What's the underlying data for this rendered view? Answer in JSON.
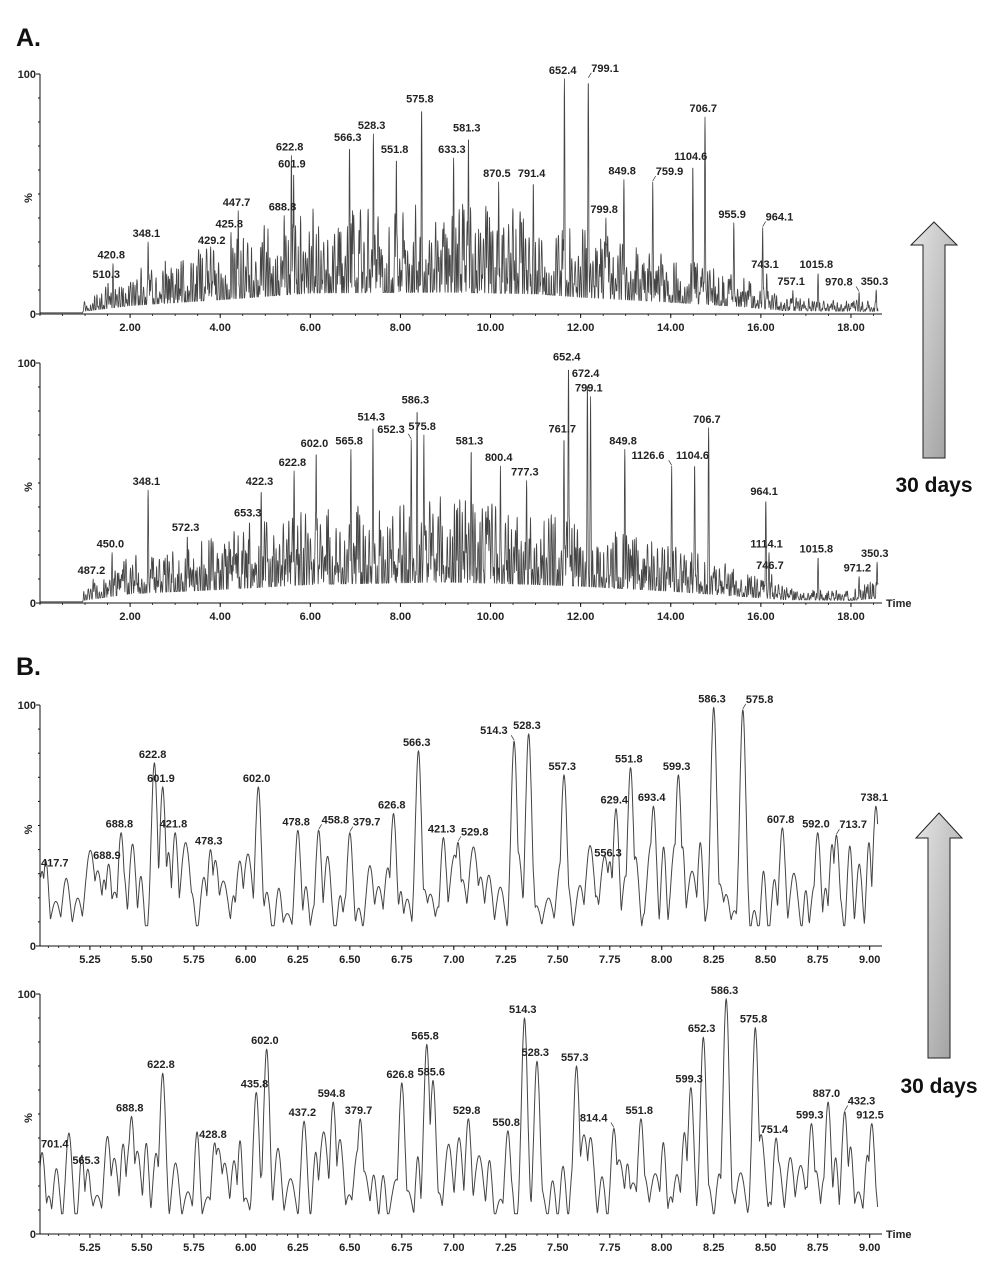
{
  "figure": {
    "section_labels": {
      "a": "A.",
      "b": "B."
    },
    "arrow_labels": {
      "a": "30 days",
      "b": "30 days"
    },
    "arrow_direction": "up",
    "arrow_fill": "#c8c8c8",
    "trace_color": "#444444"
  },
  "chart_data": [
    {
      "type": "line",
      "section": "A.",
      "ylabel": "%",
      "xlabel": "",
      "xlim": [
        0,
        18.6
      ],
      "ylim": [
        0,
        100
      ],
      "grid": false,
      "yticks": [
        "0",
        "100"
      ],
      "xticks": [
        "2.00",
        "4.00",
        "6.00",
        "8.00",
        "10.00",
        "12.00",
        "14.00",
        "16.00",
        "18.00"
      ],
      "peaks": [
        {
          "mz": "510.3",
          "t": 1.51,
          "pct": 13
        },
        {
          "mz": "420.8",
          "t": 1.62,
          "pct": 21
        },
        {
          "mz": "348.1",
          "t": 2.4,
          "pct": 30
        },
        {
          "mz": "429.2",
          "t": 3.85,
          "pct": 27
        },
        {
          "mz": "425.8",
          "t": 4.24,
          "pct": 34
        },
        {
          "mz": "447.7",
          "t": 4.4,
          "pct": 43
        },
        {
          "mz": "688.8",
          "t": 5.42,
          "pct": 41
        },
        {
          "mz": "622.8",
          "t": 5.58,
          "pct": 66
        },
        {
          "mz": "601.9",
          "t": 5.63,
          "pct": 59
        },
        {
          "mz": "566.3",
          "t": 6.87,
          "pct": 70
        },
        {
          "mz": "528.3",
          "t": 7.4,
          "pct": 75
        },
        {
          "mz": "551.8",
          "t": 7.91,
          "pct": 65
        },
        {
          "mz": "575.8",
          "t": 8.47,
          "pct": 86
        },
        {
          "mz": "633.3",
          "t": 9.18,
          "pct": 65
        },
        {
          "mz": "581.3",
          "t": 9.51,
          "pct": 74
        },
        {
          "mz": "870.5",
          "t": 10.18,
          "pct": 55
        },
        {
          "mz": "791.4",
          "t": 10.95,
          "pct": 55
        },
        {
          "mz": "652.4",
          "t": 11.64,
          "pct": 98
        },
        {
          "mz": "799.1",
          "t": 12.17,
          "pct": 98
        },
        {
          "mz": "799.8",
          "t": 12.56,
          "pct": 40
        },
        {
          "mz": "849.8",
          "t": 12.96,
          "pct": 56
        },
        {
          "mz": "759.9",
          "t": 13.6,
          "pct": 55
        },
        {
          "mz": "1104.6",
          "t": 14.49,
          "pct": 62
        },
        {
          "mz": "706.7",
          "t": 14.76,
          "pct": 82
        },
        {
          "mz": "955.9",
          "t": 15.4,
          "pct": 38
        },
        {
          "mz": "964.1",
          "t": 16.04,
          "pct": 36
        },
        {
          "mz": "743.1",
          "t": 16.13,
          "pct": 17
        },
        {
          "mz": "757.1",
          "t": 16.71,
          "pct": 10
        },
        {
          "mz": "1015.8",
          "t": 17.27,
          "pct": 17
        },
        {
          "mz": "970.8",
          "t": 18.18,
          "pct": 9
        },
        {
          "mz": "350.3",
          "t": 18.56,
          "pct": 10
        }
      ]
    },
    {
      "type": "line",
      "section": "A.",
      "ylabel": "%",
      "xlabel": "Time",
      "xlim": [
        0,
        18.6
      ],
      "ylim": [
        0,
        100
      ],
      "grid": false,
      "yticks": [
        "0",
        "100"
      ],
      "xticks": [
        "2.00",
        "4.00",
        "6.00",
        "8.00",
        "10.00",
        "12.00",
        "14.00",
        "16.00",
        "18.00"
      ],
      "peaks": [
        {
          "mz": "487.2",
          "t": 1.18,
          "pct": 10
        },
        {
          "mz": "450.0",
          "t": 1.6,
          "pct": 21
        },
        {
          "mz": "348.1",
          "t": 2.4,
          "pct": 47
        },
        {
          "mz": "572.3",
          "t": 3.27,
          "pct": 28
        },
        {
          "mz": "653.3",
          "t": 4.65,
          "pct": 34
        },
        {
          "mz": "422.3",
          "t": 4.91,
          "pct": 47
        },
        {
          "mz": "622.8",
          "t": 5.64,
          "pct": 55
        },
        {
          "mz": "602.0",
          "t": 6.13,
          "pct": 63
        },
        {
          "mz": "565.8",
          "t": 6.9,
          "pct": 64
        },
        {
          "mz": "514.3",
          "t": 7.39,
          "pct": 74
        },
        {
          "mz": "652.3",
          "t": 8.24,
          "pct": 68
        },
        {
          "mz": "586.3",
          "t": 8.37,
          "pct": 81
        },
        {
          "mz": "575.8",
          "t": 8.52,
          "pct": 70
        },
        {
          "mz": "581.3",
          "t": 9.57,
          "pct": 64
        },
        {
          "mz": "800.4",
          "t": 10.22,
          "pct": 57
        },
        {
          "mz": "777.3",
          "t": 10.8,
          "pct": 51
        },
        {
          "mz": "761.7",
          "t": 11.63,
          "pct": 69
        },
        {
          "mz": "652.4",
          "t": 11.73,
          "pct": 99
        },
        {
          "mz": "672.4",
          "t": 12.15,
          "pct": 92
        },
        {
          "mz": "799.1",
          "t": 12.22,
          "pct": 86
        },
        {
          "mz": "849.8",
          "t": 12.98,
          "pct": 64
        },
        {
          "mz": "1126.6",
          "t": 14.02,
          "pct": 57
        },
        {
          "mz": "1104.6",
          "t": 14.53,
          "pct": 58
        },
        {
          "mz": "706.7",
          "t": 14.84,
          "pct": 73
        },
        {
          "mz": "964.1",
          "t": 16.11,
          "pct": 43
        },
        {
          "mz": "1114.1",
          "t": 16.18,
          "pct": 21
        },
        {
          "mz": "746.7",
          "t": 16.24,
          "pct": 12
        },
        {
          "mz": "1015.8",
          "t": 17.27,
          "pct": 19
        },
        {
          "mz": "971.2",
          "t": 18.18,
          "pct": 11
        },
        {
          "mz": "350.3",
          "t": 18.58,
          "pct": 17
        }
      ]
    },
    {
      "type": "line",
      "section": "B.",
      "ylabel": "%",
      "xlabel": "",
      "xlim": [
        5.01,
        9.04
      ],
      "ylim": [
        0,
        100
      ],
      "grid": false,
      "yticks": [
        "0",
        "100"
      ],
      "xticks": [
        "5.25",
        "5.50",
        "5.75",
        "6.00",
        "6.25",
        "6.50",
        "6.75",
        "7.00",
        "7.25",
        "7.50",
        "7.75",
        "8.00",
        "8.25",
        "8.50",
        "8.75",
        "9.00"
      ],
      "peaks": [
        {
          "mz": "417.7",
          "t": 5.02,
          "pct": 31
        },
        {
          "mz": "688.9",
          "t": 5.34,
          "pct": 34
        },
        {
          "mz": "688.8",
          "t": 5.4,
          "pct": 47
        },
        {
          "mz": "622.8",
          "t": 5.56,
          "pct": 76
        },
        {
          "mz": "601.9",
          "t": 5.6,
          "pct": 66
        },
        {
          "mz": "421.8",
          "t": 5.66,
          "pct": 47
        },
        {
          "mz": "478.3",
          "t": 5.83,
          "pct": 40
        },
        {
          "mz": "602.0",
          "t": 6.06,
          "pct": 66
        },
        {
          "mz": "478.8",
          "t": 6.25,
          "pct": 48
        },
        {
          "mz": "458.8",
          "t": 6.35,
          "pct": 48
        },
        {
          "mz": "379.7",
          "t": 6.5,
          "pct": 47
        },
        {
          "mz": "626.8",
          "t": 6.71,
          "pct": 55
        },
        {
          "mz": "566.3",
          "t": 6.83,
          "pct": 81
        },
        {
          "mz": "421.3",
          "t": 6.95,
          "pct": 45
        },
        {
          "mz": "529.8",
          "t": 7.02,
          "pct": 43
        },
        {
          "mz": "514.3",
          "t": 7.29,
          "pct": 85
        },
        {
          "mz": "528.3",
          "t": 7.36,
          "pct": 88
        },
        {
          "mz": "557.3",
          "t": 7.53,
          "pct": 71
        },
        {
          "mz": "556.3",
          "t": 7.75,
          "pct": 35
        },
        {
          "mz": "629.4",
          "t": 7.78,
          "pct": 57
        },
        {
          "mz": "551.8",
          "t": 7.85,
          "pct": 74
        },
        {
          "mz": "693.4",
          "t": 7.96,
          "pct": 58
        },
        {
          "mz": "599.3",
          "t": 8.08,
          "pct": 71
        },
        {
          "mz": "586.3",
          "t": 8.25,
          "pct": 99
        },
        {
          "mz": "575.8",
          "t": 8.39,
          "pct": 98
        },
        {
          "mz": "607.8",
          "t": 8.58,
          "pct": 49
        },
        {
          "mz": "592.0",
          "t": 8.75,
          "pct": 47
        },
        {
          "mz": "713.7",
          "t": 8.84,
          "pct": 46
        },
        {
          "mz": "738.1",
          "t": 9.03,
          "pct": 58
        }
      ]
    },
    {
      "type": "line",
      "section": "B.",
      "ylabel": "%",
      "xlabel": "Time",
      "xlim": [
        5.01,
        9.04
      ],
      "ylim": [
        0,
        100
      ],
      "grid": false,
      "yticks": [
        "0",
        "100"
      ],
      "xticks": [
        "5.25",
        "5.50",
        "5.75",
        "6.00",
        "6.25",
        "6.50",
        "6.75",
        "7.00",
        "7.25",
        "7.50",
        "7.75",
        "8.00",
        "8.25",
        "8.50",
        "8.75",
        "9.00"
      ],
      "peaks": [
        {
          "mz": "701.4",
          "t": 5.02,
          "pct": 34
        },
        {
          "mz": "565.3",
          "t": 5.24,
          "pct": 27
        },
        {
          "mz": "688.8",
          "t": 5.45,
          "pct": 49
        },
        {
          "mz": "622.8",
          "t": 5.6,
          "pct": 67
        },
        {
          "mz": "428.8",
          "t": 5.85,
          "pct": 38
        },
        {
          "mz": "435.8",
          "t": 6.05,
          "pct": 59
        },
        {
          "mz": "602.0",
          "t": 6.1,
          "pct": 77
        },
        {
          "mz": "437.2",
          "t": 6.28,
          "pct": 47
        },
        {
          "mz": "594.8",
          "t": 6.42,
          "pct": 55
        },
        {
          "mz": "379.7",
          "t": 6.55,
          "pct": 48
        },
        {
          "mz": "626.8",
          "t": 6.75,
          "pct": 63
        },
        {
          "mz": "565.8",
          "t": 6.87,
          "pct": 79
        },
        {
          "mz": "585.6",
          "t": 6.9,
          "pct": 64
        },
        {
          "mz": "529.8",
          "t": 7.07,
          "pct": 48
        },
        {
          "mz": "550.8",
          "t": 7.26,
          "pct": 43
        },
        {
          "mz": "514.3",
          "t": 7.34,
          "pct": 90
        },
        {
          "mz": "528.3",
          "t": 7.4,
          "pct": 72
        },
        {
          "mz": "557.3",
          "t": 7.59,
          "pct": 70
        },
        {
          "mz": "814.4",
          "t": 7.77,
          "pct": 44
        },
        {
          "mz": "551.8",
          "t": 7.9,
          "pct": 48
        },
        {
          "mz": "599.3",
          "t": 8.14,
          "pct": 61
        },
        {
          "mz": "652.3",
          "t": 8.2,
          "pct": 82
        },
        {
          "mz": "586.3",
          "t": 8.31,
          "pct": 98
        },
        {
          "mz": "575.8",
          "t": 8.45,
          "pct": 86
        },
        {
          "mz": "751.4",
          "t": 8.55,
          "pct": 40
        },
        {
          "mz": "599.3",
          "t": 8.72,
          "pct": 46
        },
        {
          "mz": "887.0",
          "t": 8.8,
          "pct": 55
        },
        {
          "mz": "432.3",
          "t": 8.88,
          "pct": 51
        },
        {
          "mz": "912.5",
          "t": 9.01,
          "pct": 46
        }
      ]
    }
  ]
}
